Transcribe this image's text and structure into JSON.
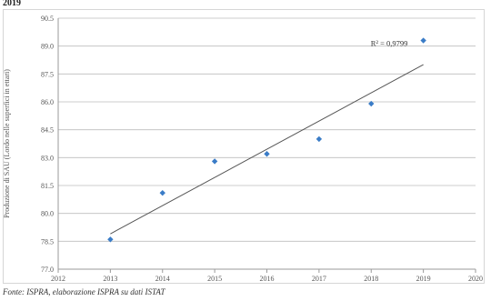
{
  "header": {
    "title_fragment": "2019"
  },
  "footer": {
    "source": "Fonte: ISPRA, elaborazione ISPRA su dati ISTAT"
  },
  "chart_data": {
    "type": "scatter",
    "title": "",
    "xlabel": "",
    "ylabel": "Produzione di SAU (Lordo nelle superfici in ettari)",
    "xlim": [
      2012,
      2020
    ],
    "ylim": [
      77.0,
      90.5
    ],
    "x_ticks": [
      2012,
      2013,
      2014,
      2015,
      2016,
      2017,
      2018,
      2019,
      2020
    ],
    "x_tick_labels": [
      "2012",
      "2013",
      "2014",
      "2015",
      "2016",
      "2017",
      "2018",
      "2019",
      "2020"
    ],
    "y_ticks": [
      77.0,
      78.5,
      80.0,
      81.5,
      83.0,
      84.5,
      86.0,
      87.5,
      89.0,
      90.5
    ],
    "y_tick_labels": [
      "77.0",
      "78.5",
      "80.0",
      "81.5",
      "83.0",
      "84.5",
      "86.0",
      "87.5",
      "89.0",
      "90.5"
    ],
    "grid": {
      "horizontal": true,
      "vertical": false
    },
    "series": [
      {
        "x": [
          2013,
          2014,
          2015,
          2016,
          2017,
          2018,
          2019
        ],
        "y": [
          78.6,
          81.1,
          82.8,
          83.2,
          84.0,
          85.9,
          89.3
        ],
        "color": "#3a7cc7"
      }
    ],
    "trendline": {
      "x": [
        2013,
        2019
      ],
      "y": [
        78.9,
        88.0
      ],
      "color": "#555555"
    },
    "annotation": {
      "text": "R² = 0,9799",
      "x": 2018.7,
      "y": 89.0
    }
  }
}
